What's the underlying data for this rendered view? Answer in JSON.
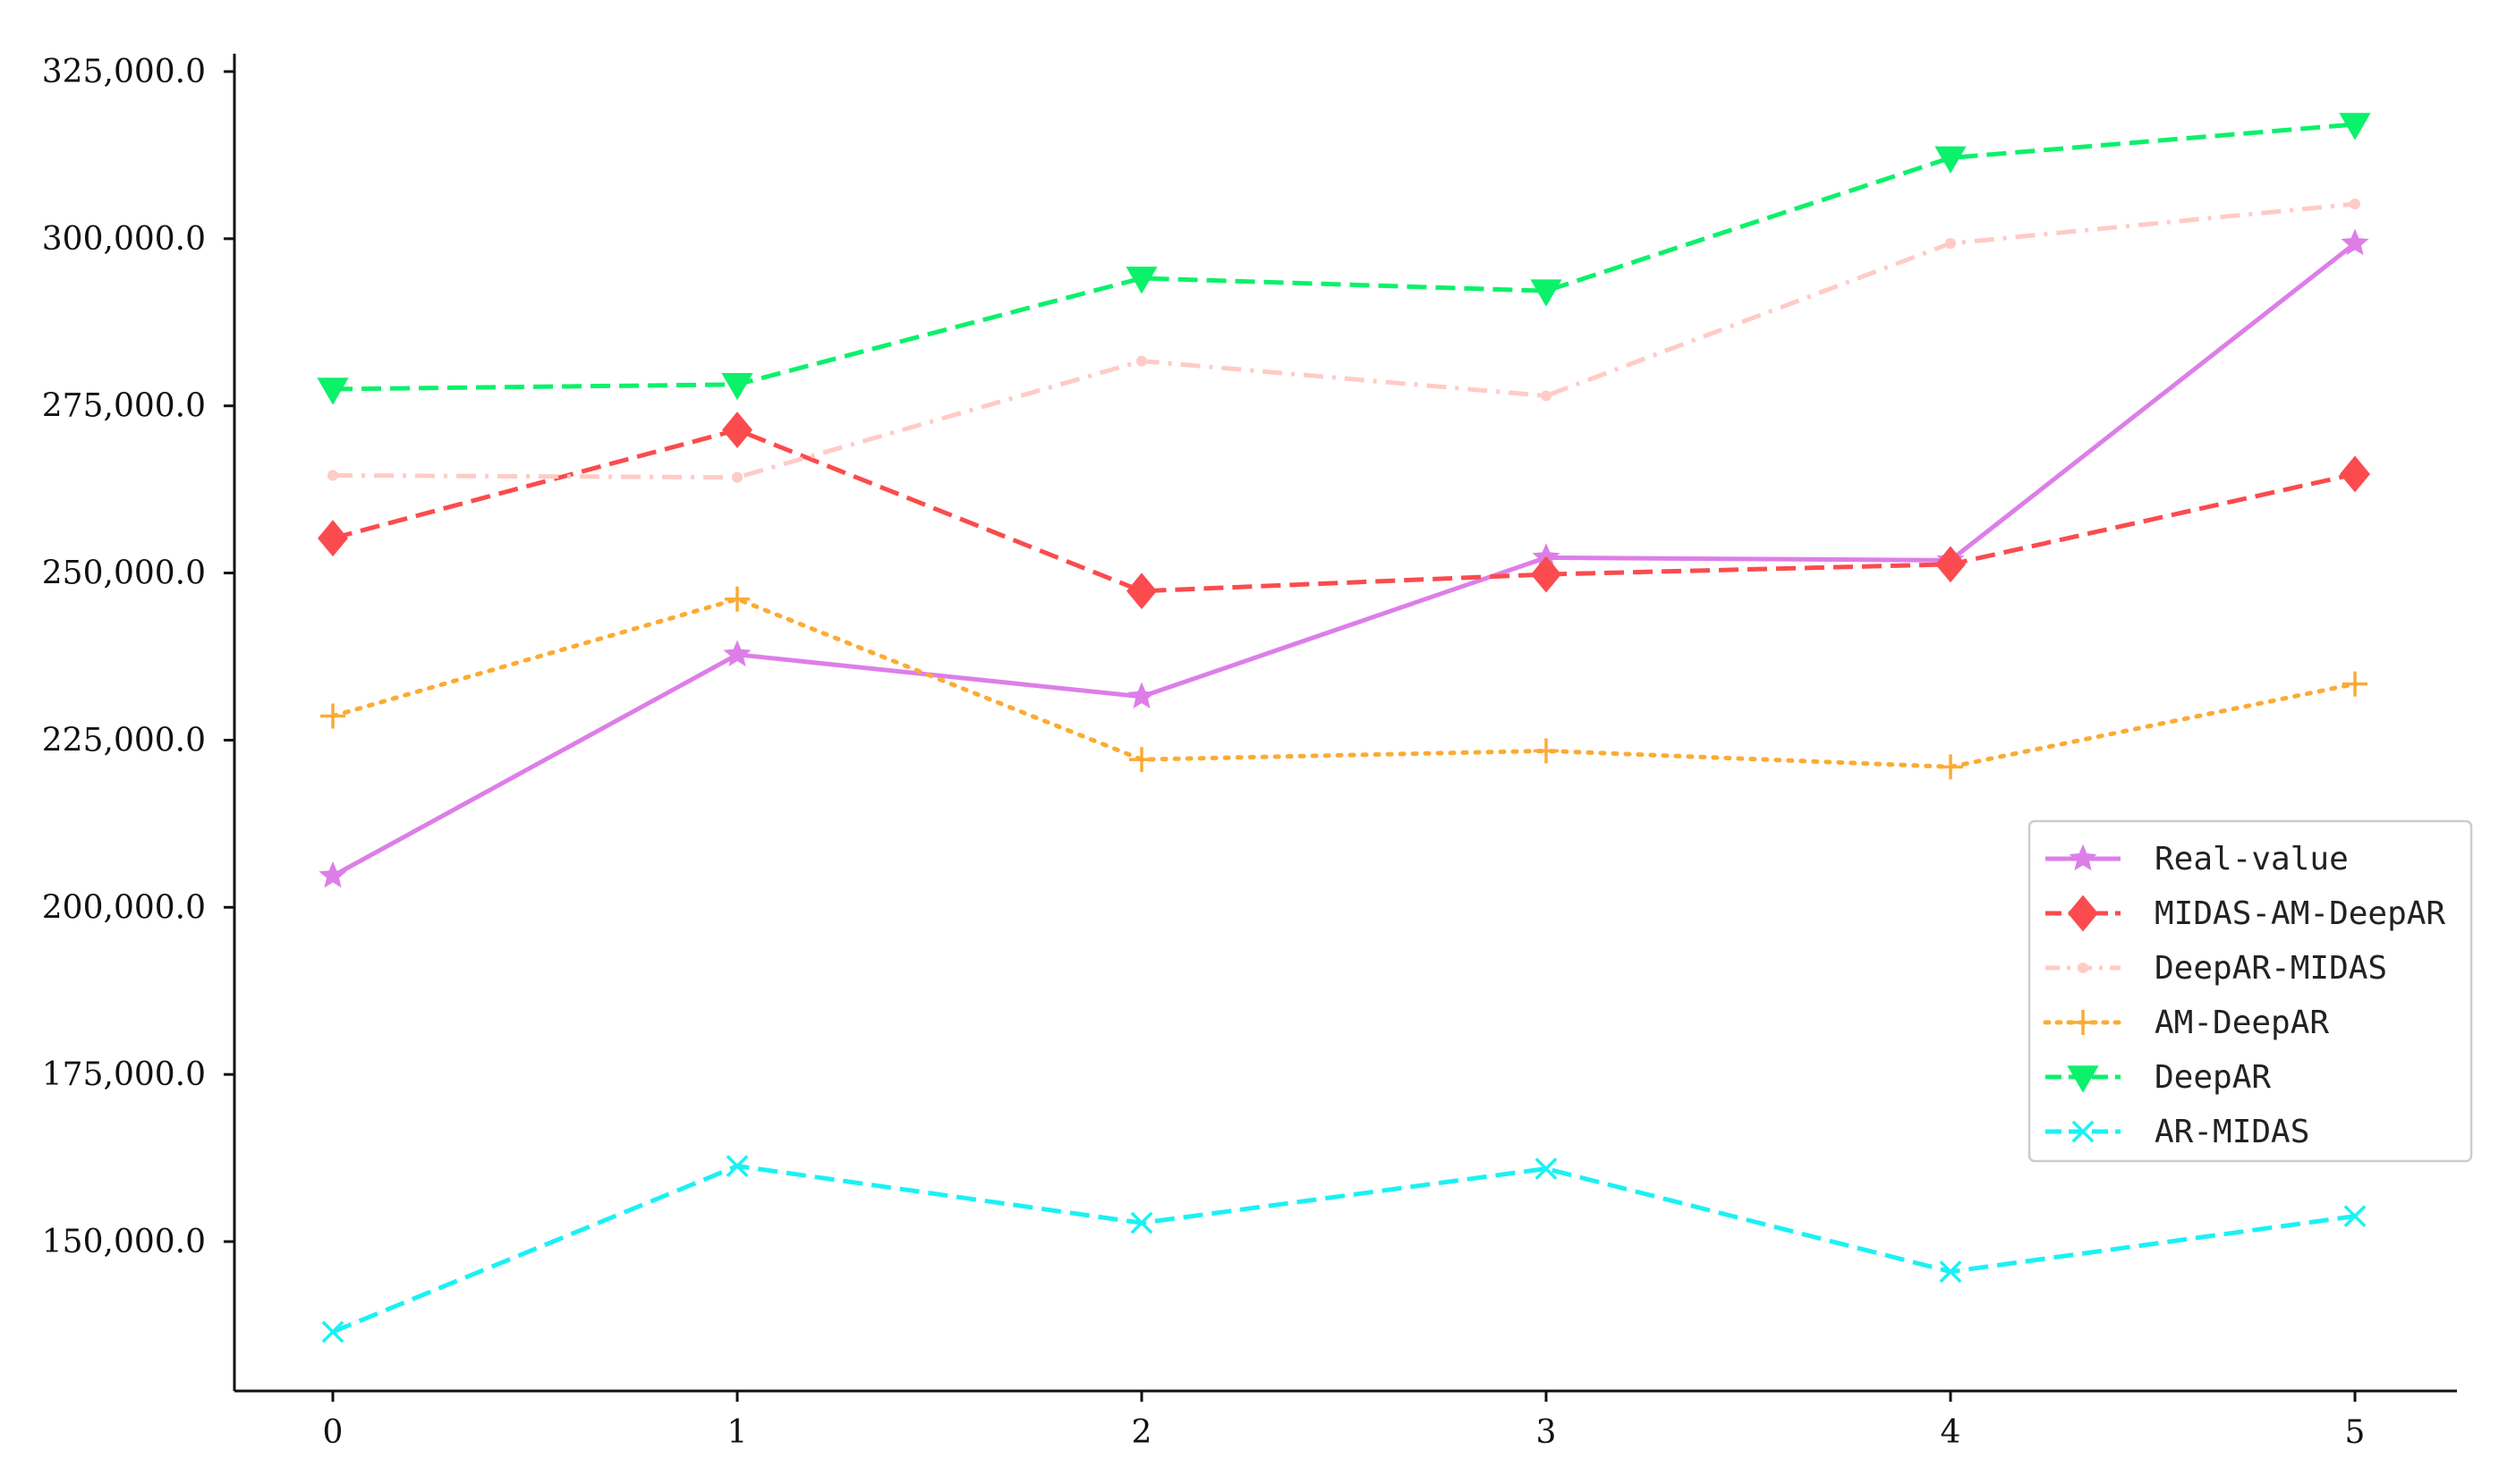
{
  "chart_data": {
    "type": "line",
    "x": [
      0,
      1,
      2,
      3,
      4,
      5
    ],
    "title": "",
    "xlabel": "",
    "ylabel": "",
    "xlim": [
      -0.25,
      5.25
    ],
    "ylim": [
      128000,
      326000
    ],
    "yticks": [
      150000,
      175000,
      200000,
      225000,
      250000,
      275000,
      300000,
      325000
    ],
    "ytick_labels": [
      "150,000.0",
      "175,000.0",
      "200,000.0",
      "225,000.0",
      "250,000.0",
      "275,000.0",
      "300,000.0",
      "325,000.0"
    ],
    "xtick_labels": [
      "0",
      "1",
      "2",
      "3",
      "4",
      "5"
    ],
    "grid": false,
    "legend_position": "right",
    "series": [
      {
        "name": "Real-value",
        "color": "#dd7ee8",
        "dash": "solid",
        "marker": "star",
        "values": [
          204700,
          237800,
          231500,
          252300,
          251900,
          299300
        ]
      },
      {
        "name": "MIDAS-AM-DeepAR",
        "color": "#fb4b4e",
        "dash": "dashed",
        "marker": "diamond",
        "values": [
          255200,
          271400,
          247300,
          249800,
          251300,
          264800
        ]
      },
      {
        "name": "DeepAR-MIDAS",
        "color": "#ffcbc6",
        "dash": "dashdot",
        "marker": "dot",
        "values": [
          264600,
          264300,
          281700,
          276500,
          299300,
          305200
        ]
      },
      {
        "name": "AM-DeepAR",
        "color": "#fbab34",
        "dash": "dotted",
        "marker": "plus",
        "values": [
          228600,
          246100,
          222100,
          223400,
          221000,
          233400
        ]
      },
      {
        "name": "DeepAR",
        "color": "#0bf16a",
        "dash": "dashed",
        "marker": "triangle-down",
        "values": [
          277500,
          278200,
          294100,
          292200,
          312100,
          317100
        ]
      },
      {
        "name": "AR-MIDAS",
        "color": "#1bf1f4",
        "dash": "dashed",
        "marker": "x",
        "values": [
          136500,
          161300,
          152800,
          160900,
          145500,
          153800
        ]
      }
    ]
  }
}
